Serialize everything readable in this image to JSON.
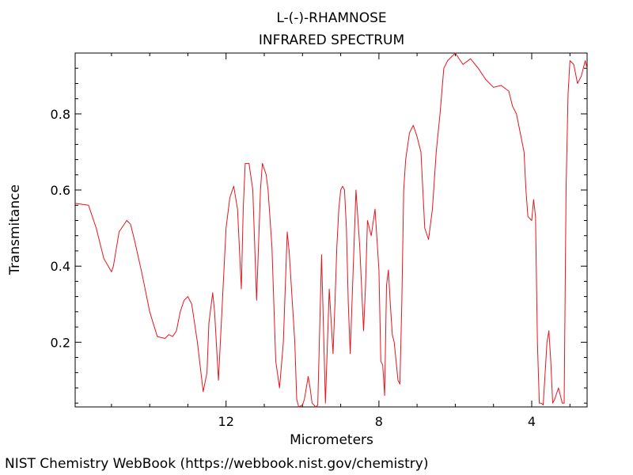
{
  "chart_data": {
    "type": "line",
    "title": "L-(-)-RHAMNOSE",
    "subtitle": "INFRARED SPECTRUM",
    "xlabel": "Micrometers",
    "ylabel": "Transmitance",
    "x_axis_reversed": true,
    "xlim": [
      15.95,
      2.55
    ],
    "ylim": [
      0.03,
      0.96
    ],
    "x_ticks": [
      12,
      8,
      4
    ],
    "y_ticks": [
      0.2,
      0.4,
      0.6,
      0.8
    ],
    "grid": false,
    "line_color": "#e8141c",
    "series": [
      {
        "x": [
          15.95,
          15.6,
          15.4,
          15.2,
          15.0,
          14.95,
          14.8,
          14.6,
          14.5,
          14.4,
          14.2,
          14.0,
          13.8,
          13.6,
          13.5,
          13.4,
          13.3,
          13.2,
          13.1,
          13.0,
          12.9,
          12.75,
          12.6,
          12.5,
          12.45,
          12.35,
          12.3,
          12.2,
          12.1,
          12.0,
          11.9,
          11.8,
          11.7,
          11.6,
          11.55,
          11.5,
          11.4,
          11.3,
          11.2,
          11.1,
          11.05,
          10.95,
          10.9,
          10.8,
          10.7,
          10.6,
          10.5,
          10.4,
          10.35,
          10.2,
          10.15,
          10.1,
          10.0,
          9.95,
          9.85,
          9.8,
          9.75,
          9.65,
          9.6,
          9.5,
          9.4,
          9.3,
          9.2,
          9.15,
          9.1,
          9.05,
          9.0,
          8.95,
          8.9,
          8.85,
          8.8,
          8.75,
          8.6,
          8.5,
          8.4,
          8.35,
          8.3,
          8.2,
          8.1,
          8.0,
          7.95,
          7.9,
          7.85,
          7.8,
          7.75,
          7.7,
          7.65,
          7.6,
          7.55,
          7.5,
          7.45,
          7.4,
          7.35,
          7.3,
          7.2,
          7.1,
          7.0,
          6.9,
          6.8,
          6.7,
          6.6,
          6.5,
          6.4,
          6.35,
          6.3,
          6.2,
          6.0,
          5.8,
          5.6,
          5.4,
          5.2,
          5.0,
          4.8,
          4.6,
          4.5,
          4.4,
          4.3,
          4.2,
          4.15,
          4.1,
          4.0,
          3.95,
          3.9,
          3.85,
          3.8,
          3.75,
          3.7,
          3.6,
          3.55,
          3.5,
          3.45,
          3.4,
          3.3,
          3.2,
          3.15,
          3.1,
          3.05,
          3.0,
          2.9,
          2.8,
          2.7,
          2.6,
          2.55
        ],
        "y": [
          0.565,
          0.56,
          0.5,
          0.42,
          0.385,
          0.4,
          0.49,
          0.52,
          0.51,
          0.47,
          0.38,
          0.28,
          0.215,
          0.21,
          0.22,
          0.215,
          0.23,
          0.28,
          0.31,
          0.32,
          0.3,
          0.2,
          0.07,
          0.12,
          0.25,
          0.33,
          0.28,
          0.1,
          0.3,
          0.5,
          0.58,
          0.61,
          0.55,
          0.34,
          0.55,
          0.67,
          0.67,
          0.6,
          0.31,
          0.6,
          0.67,
          0.64,
          0.6,
          0.45,
          0.15,
          0.08,
          0.2,
          0.49,
          0.44,
          0.2,
          0.05,
          0.03,
          0.035,
          0.05,
          0.11,
          0.08,
          0.04,
          0.03,
          0.035,
          0.43,
          0.04,
          0.34,
          0.17,
          0.3,
          0.45,
          0.55,
          0.6,
          0.61,
          0.6,
          0.5,
          0.3,
          0.17,
          0.6,
          0.45,
          0.23,
          0.35,
          0.52,
          0.48,
          0.55,
          0.39,
          0.15,
          0.14,
          0.06,
          0.35,
          0.39,
          0.3,
          0.22,
          0.2,
          0.15,
          0.1,
          0.09,
          0.3,
          0.6,
          0.68,
          0.75,
          0.77,
          0.74,
          0.7,
          0.5,
          0.47,
          0.55,
          0.7,
          0.8,
          0.86,
          0.92,
          0.94,
          0.96,
          0.93,
          0.945,
          0.92,
          0.89,
          0.87,
          0.875,
          0.86,
          0.82,
          0.8,
          0.75,
          0.7,
          0.6,
          0.53,
          0.52,
          0.575,
          0.53,
          0.2,
          0.04,
          0.04,
          0.035,
          0.2,
          0.23,
          0.15,
          0.04,
          0.05,
          0.08,
          0.04,
          0.04,
          0.6,
          0.85,
          0.94,
          0.93,
          0.88,
          0.9,
          0.94,
          0.92
        ]
      }
    ]
  },
  "footer": "NIST Chemistry WebBook (https://webbook.nist.gov/chemistry)"
}
